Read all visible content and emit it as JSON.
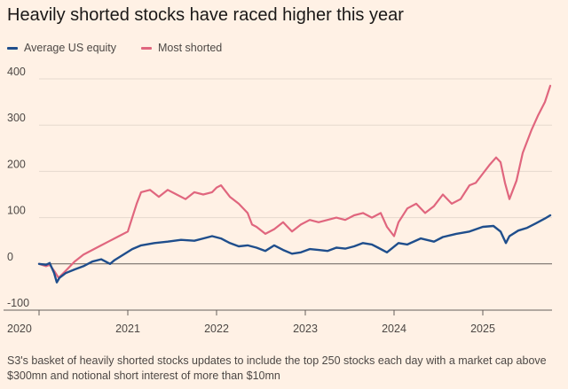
{
  "title": "Heavily shorted stocks have raced higher this year",
  "footnote": "S3's basket of heavily shorted stocks updates to include the top 250 stocks each day with a market cap above $300mn and notional short interest of more than $10mn",
  "chart_data": {
    "type": "line",
    "title": "Heavily shorted stocks have raced higher this year",
    "xlabel": "",
    "ylabel": "",
    "xlim": [
      2020.0,
      2025.78
    ],
    "ylim": [
      -100,
      400
    ],
    "y_ticks": [
      -100,
      0,
      100,
      200,
      300,
      400
    ],
    "x_ticks": [
      2020,
      2021,
      2022,
      2023,
      2024,
      2025
    ],
    "x_tick_labels": [
      "2020",
      "2021",
      "2022",
      "2023",
      "2024",
      "2025"
    ],
    "grid": "horizontal",
    "legend_position": "top-left",
    "series": [
      {
        "name": "Average US equity",
        "color": "#1f4e8c",
        "x": [
          2020.0,
          2020.08,
          2020.12,
          2020.17,
          2020.2,
          2020.23,
          2020.3,
          2020.4,
          2020.5,
          2020.6,
          2020.7,
          2020.8,
          2020.85,
          2020.95,
          2021.05,
          2021.15,
          2021.3,
          2021.45,
          2021.6,
          2021.75,
          2021.85,
          2021.95,
          2022.05,
          2022.15,
          2022.25,
          2022.35,
          2022.45,
          2022.55,
          2022.65,
          2022.75,
          2022.85,
          2022.95,
          2023.05,
          2023.15,
          2023.25,
          2023.35,
          2023.45,
          2023.55,
          2023.65,
          2023.75,
          2023.82,
          2023.92,
          2024.05,
          2024.15,
          2024.3,
          2024.45,
          2024.55,
          2024.7,
          2024.85,
          2025.0,
          2025.12,
          2025.2,
          2025.26,
          2025.3,
          2025.4,
          2025.5,
          2025.6,
          2025.7,
          2025.76
        ],
        "y": [
          0,
          -2,
          2,
          -20,
          -40,
          -30,
          -20,
          -12,
          -5,
          5,
          10,
          0,
          8,
          20,
          32,
          40,
          45,
          48,
          52,
          50,
          55,
          60,
          55,
          45,
          38,
          40,
          35,
          28,
          40,
          30,
          22,
          25,
          32,
          30,
          28,
          35,
          33,
          38,
          45,
          42,
          35,
          25,
          45,
          42,
          55,
          48,
          58,
          65,
          70,
          80,
          82,
          70,
          45,
          60,
          72,
          78,
          88,
          98,
          105
        ]
      },
      {
        "name": "Most shorted",
        "color": "#e0667e",
        "x": [
          2020.0,
          2020.08,
          2020.12,
          2020.17,
          2020.22,
          2020.3,
          2020.4,
          2020.5,
          2020.6,
          2020.7,
          2020.8,
          2020.9,
          2021.0,
          2021.05,
          2021.1,
          2021.15,
          2021.25,
          2021.35,
          2021.45,
          2021.55,
          2021.65,
          2021.75,
          2021.85,
          2021.95,
          2022.0,
          2022.05,
          2022.15,
          2022.25,
          2022.35,
          2022.4,
          2022.45,
          2022.55,
          2022.65,
          2022.75,
          2022.85,
          2022.95,
          2023.05,
          2023.15,
          2023.25,
          2023.35,
          2023.45,
          2023.55,
          2023.65,
          2023.75,
          2023.85,
          2023.92,
          2024.0,
          2024.05,
          2024.15,
          2024.25,
          2024.35,
          2024.45,
          2024.55,
          2024.65,
          2024.75,
          2024.85,
          2024.92,
          2025.0,
          2025.08,
          2025.15,
          2025.2,
          2025.25,
          2025.3,
          2025.38,
          2025.45,
          2025.55,
          2025.62,
          2025.7,
          2025.76
        ],
        "y": [
          0,
          -5,
          -2,
          -15,
          -30,
          -15,
          5,
          20,
          30,
          40,
          50,
          60,
          70,
          100,
          130,
          155,
          160,
          145,
          160,
          150,
          140,
          155,
          150,
          155,
          165,
          170,
          145,
          130,
          110,
          85,
          80,
          65,
          75,
          90,
          70,
          85,
          95,
          90,
          95,
          100,
          95,
          105,
          110,
          100,
          110,
          80,
          60,
          90,
          120,
          130,
          110,
          125,
          150,
          130,
          140,
          170,
          175,
          195,
          215,
          230,
          220,
          175,
          140,
          180,
          240,
          290,
          320,
          350,
          385
        ]
      }
    ]
  }
}
